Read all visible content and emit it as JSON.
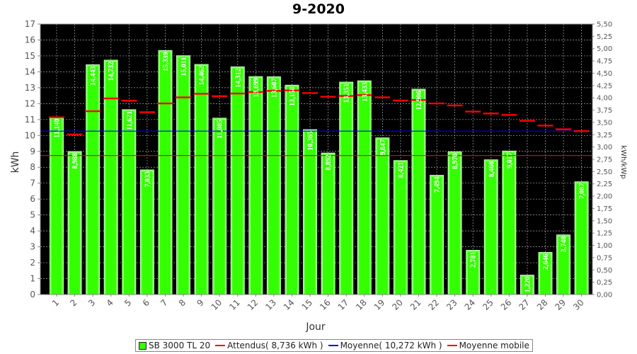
{
  "title": "9-2020",
  "chart_data": {
    "type": "bar",
    "title": "9-2020",
    "xlabel": "Jour",
    "ylabel": "kWh",
    "y2label": "kWh/kWp",
    "ylim": [
      0,
      17
    ],
    "y2lim": [
      0,
      5.5
    ],
    "yticks": [
      "0",
      "1",
      "2",
      "3",
      "4",
      "5",
      "6",
      "7",
      "8",
      "9",
      "10",
      "11",
      "12",
      "13",
      "14",
      "15",
      "16",
      "17"
    ],
    "y2ticks": [
      "0,00",
      "0,25",
      "0,50",
      "0,75",
      "1,00",
      "1,25",
      "1,50",
      "1,75",
      "2,00",
      "2,25",
      "2,50",
      "2,75",
      "3,00",
      "3,25",
      "3,50",
      "3,75",
      "4,00",
      "4,25",
      "4,50",
      "4,75",
      "5,00",
      "5,25",
      "5,50"
    ],
    "categories": [
      "1",
      "2",
      "3",
      "4",
      "5",
      "6",
      "7",
      "8",
      "9",
      "10",
      "11",
      "12",
      "13",
      "14",
      "15",
      "16",
      "17",
      "18",
      "19",
      "20",
      "21",
      "22",
      "23",
      "24",
      "25",
      "26",
      "27",
      "28",
      "29",
      "30"
    ],
    "series": [
      {
        "name": "SB 3000 TL 20",
        "type": "bar",
        "color": "#33ff00",
        "values": [
          11.14,
          8.988,
          14.443,
          14.732,
          11.621,
          7.833,
          15.339,
          15.011,
          14.462,
          11.085,
          14.312,
          13.699,
          13.687,
          13.158,
          10.365,
          8.892,
          13.351,
          13.433,
          9.847,
          8.421,
          12.906,
          7.494,
          8.97,
          2.781,
          8.468,
          9.017,
          1.22,
          2.646,
          3.748,
          7.087
        ],
        "labels": [
          "11,140",
          "8,988",
          "14,443",
          "14,732",
          "11,621",
          "7,833",
          "15,339",
          "15,011",
          "14,462",
          "11,085",
          "14,312",
          "13,699",
          "13,687",
          "13,158",
          "10,365",
          "8,892",
          "13,351",
          "13,433",
          "9,847",
          "8,421",
          "12,906",
          "7,494",
          "8,970",
          "2,781",
          "8,468",
          "9,017",
          "1,220",
          "2,646",
          "3,748",
          "7,087"
        ]
      },
      {
        "name": "Attendus( 8,736 kWh )",
        "type": "line",
        "color": "#ff0000",
        "value": 8.736
      },
      {
        "name": "Moyenne( 10,272 kWh )",
        "type": "line",
        "color": "#0000ff",
        "value": 10.272
      },
      {
        "name": "Moyenne mobile",
        "type": "step",
        "color": "#ff0000",
        "values": [
          11.14,
          10.064,
          11.524,
          12.326,
          12.185,
          11.459,
          12.013,
          12.389,
          12.619,
          12.466,
          12.634,
          12.73,
          12.804,
          12.829,
          12.665,
          12.429,
          12.483,
          12.537,
          12.395,
          12.196,
          12.23,
          12.015,
          11.883,
          11.503,
          11.382,
          11.291,
          10.918,
          10.623,
          10.386,
          10.272
        ]
      }
    ],
    "legend": [
      "SB 3000 TL 20",
      "Attendus( 8,736 kWh )",
      "Moyenne( 10,272 kWh )",
      "Moyenne mobile"
    ],
    "legend_position": "bottom",
    "background": "#000000",
    "grid": true
  }
}
